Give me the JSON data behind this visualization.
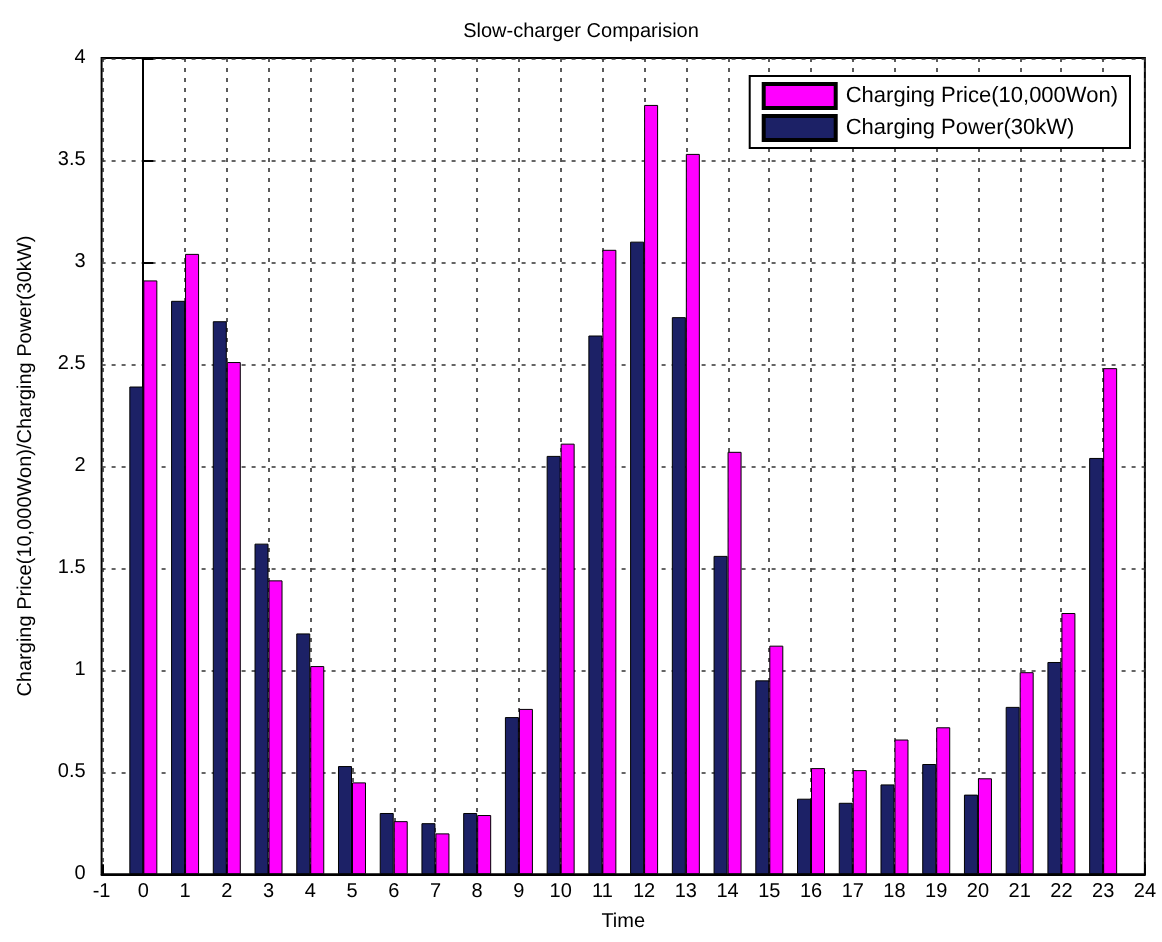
{
  "chart_data": {
    "type": "bar",
    "title": "Slow-charger Comparision",
    "xlabel": "Time",
    "ylabel": "Charging Price(10,000Won)/Charging Power(30kW)",
    "x": [
      0,
      1,
      2,
      3,
      4,
      5,
      6,
      7,
      8,
      9,
      10,
      11,
      12,
      13,
      14,
      15,
      16,
      17,
      18,
      19,
      20,
      21,
      22,
      23
    ],
    "series": [
      {
        "name": "Charging Power(30kW)",
        "color": "#1c2166",
        "values": [
          2.39,
          2.81,
          2.71,
          1.62,
          1.18,
          0.53,
          0.3,
          0.25,
          0.3,
          0.77,
          2.05,
          2.64,
          3.1,
          2.73,
          1.56,
          0.95,
          0.37,
          0.35,
          0.44,
          0.54,
          0.39,
          0.82,
          1.04,
          2.04
        ]
      },
      {
        "name": "Charging Price(10,000Won)",
        "color": "#ff00ff",
        "values": [
          2.91,
          3.04,
          2.51,
          1.44,
          1.02,
          0.45,
          0.26,
          0.2,
          0.29,
          0.81,
          2.11,
          3.06,
          3.77,
          3.53,
          2.07,
          1.12,
          0.52,
          0.51,
          0.66,
          0.72,
          0.47,
          0.99,
          1.28,
          2.48
        ]
      }
    ],
    "xlim": [
      -1,
      24
    ],
    "xticks": [
      -1,
      0,
      1,
      2,
      3,
      4,
      5,
      6,
      7,
      8,
      9,
      10,
      11,
      12,
      13,
      14,
      15,
      16,
      17,
      18,
      19,
      20,
      21,
      22,
      23,
      24
    ],
    "ylim": [
      0,
      4
    ],
    "yticks": [
      0,
      0.5,
      1,
      1.5,
      2,
      2.5,
      3,
      3.5,
      4
    ],
    "grid": true,
    "legend": "top right"
  }
}
